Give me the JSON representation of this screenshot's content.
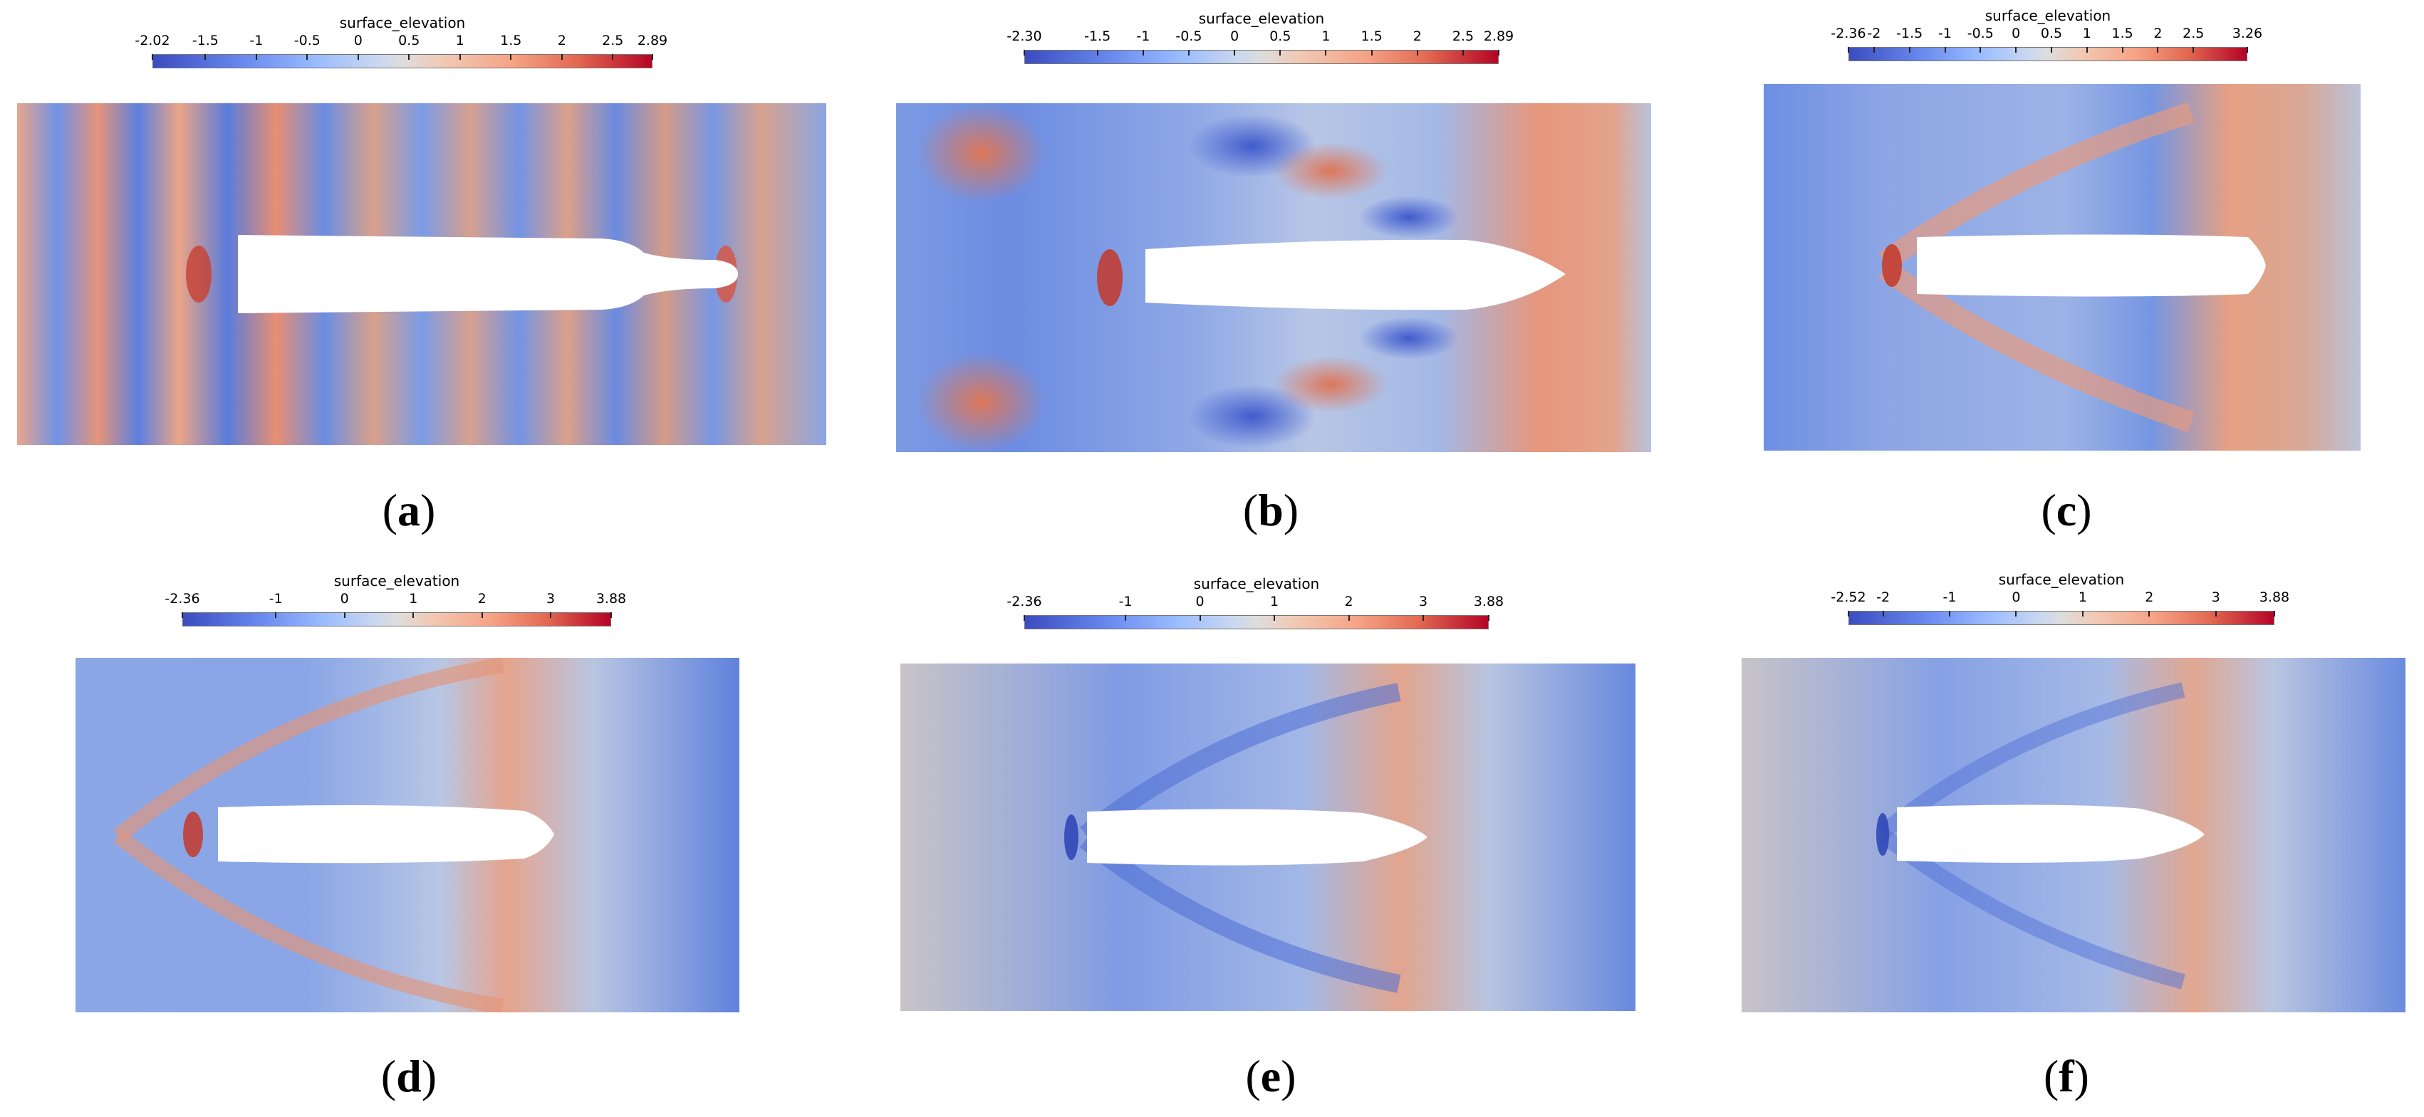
{
  "panels": [
    {
      "label": "a",
      "colorbar": {
        "title": "surface_elevation",
        "ticks": [
          "-2.02",
          "-1.5",
          "-1",
          "-0.5",
          "0",
          "0.5",
          "1",
          "1.5",
          "2",
          "2.5",
          "2.89"
        ]
      }
    },
    {
      "label": "b",
      "colorbar": {
        "title": "surface_elevation",
        "ticks": [
          "-2.30",
          "-1.5",
          "-1",
          "-0.5",
          "0",
          "0.5",
          "1",
          "1.5",
          "2",
          "2.5",
          "2.89"
        ]
      }
    },
    {
      "label": "c",
      "colorbar": {
        "title": "surface_elevation",
        "ticks": [
          "-2.36",
          "-2",
          "-1.5",
          "-1",
          "-0.5",
          "0",
          "0.5",
          "1",
          "1.5",
          "2",
          "2.5",
          "3.26"
        ]
      }
    },
    {
      "label": "d",
      "colorbar": {
        "title": "surface_elevation",
        "ticks": [
          "-2.36",
          "-1",
          "0",
          "1",
          "2",
          "3",
          "3.88"
        ]
      }
    },
    {
      "label": "e",
      "colorbar": {
        "title": "surface_elevation",
        "ticks": [
          "-2.36",
          "-1",
          "0",
          "1",
          "2",
          "3",
          "3.88"
        ]
      }
    },
    {
      "label": "f",
      "colorbar": {
        "title": "surface_elevation",
        "ticks": [
          "-2.52",
          "-2",
          "-1",
          "0",
          "1",
          "2",
          "3",
          "3.88"
        ]
      }
    }
  ],
  "colors": {
    "low": "#3b4cc0",
    "mid": "#dddddd",
    "high": "#b40426",
    "hull": "#ffffff"
  }
}
